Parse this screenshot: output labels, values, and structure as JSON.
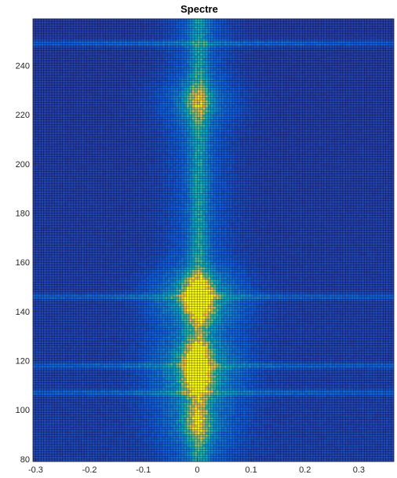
{
  "chart_data": {
    "type": "heatmap",
    "title": "Spectre",
    "xlabel": "",
    "ylabel": "",
    "xlim": [
      -0.305,
      0.365
    ],
    "ylim": [
      79,
      259
    ],
    "x_ticks": [
      {
        "value": -0.3,
        "label": "-0.3"
      },
      {
        "value": -0.2,
        "label": "-0.2"
      },
      {
        "value": -0.1,
        "label": "-0.1"
      },
      {
        "value": 0,
        "label": "0"
      },
      {
        "value": 0.1,
        "label": "0.1"
      },
      {
        "value": 0.2,
        "label": "0.2"
      },
      {
        "value": 0.3,
        "label": "0.3"
      }
    ],
    "y_ticks": [
      {
        "value": 80,
        "label": "80"
      },
      {
        "value": 100,
        "label": "100"
      },
      {
        "value": 120,
        "label": "120"
      },
      {
        "value": 140,
        "label": "140"
      },
      {
        "value": 160,
        "label": "160"
      },
      {
        "value": 180,
        "label": "180"
      },
      {
        "value": 200,
        "label": "200"
      },
      {
        "value": 220,
        "label": "220"
      },
      {
        "value": 240,
        "label": "240"
      }
    ],
    "colormap": [
      "#352a87",
      "#0f5cdd",
      "#1481d6",
      "#06a4ca",
      "#2eb7a4",
      "#87bf77",
      "#d1bb59",
      "#fec832",
      "#f9fb0e"
    ],
    "mesh_color": "#000000",
    "grid_step": {
      "x": 0.005,
      "y": 1
    },
    "intensity_peaks": [
      {
        "x": 0.0,
        "y": 112,
        "level": 0.85
      },
      {
        "x": 0.0,
        "y": 122,
        "level": 0.8
      },
      {
        "x": 0.0,
        "y": 148,
        "level": 0.8
      },
      {
        "x": 0.005,
        "y": 142,
        "level": 0.7
      },
      {
        "x": 0.0,
        "y": 95,
        "level": 0.55
      },
      {
        "x": 0.0,
        "y": 225,
        "level": 0.45
      }
    ],
    "bright_rows": [
      107,
      118,
      146,
      249
    ]
  }
}
